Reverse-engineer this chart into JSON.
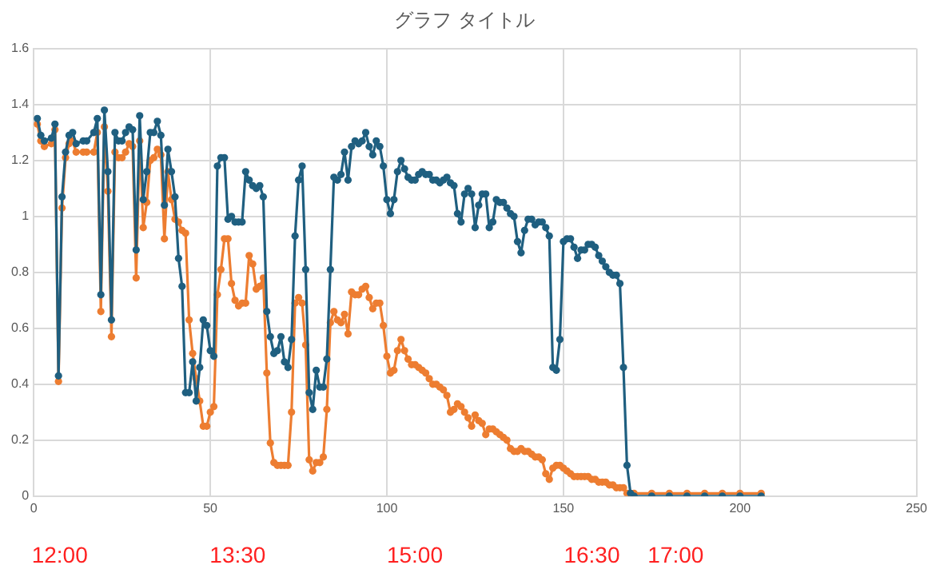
{
  "chart_data": {
    "type": "line",
    "title": "グラフ タイトル",
    "marker": "circle",
    "grid": true,
    "legend": false,
    "x": [
      1,
      2,
      3,
      5,
      6,
      7,
      8,
      9,
      10,
      11,
      12,
      14,
      15,
      17,
      18,
      19,
      20,
      21,
      22,
      23,
      24,
      25,
      26,
      27,
      28,
      29,
      30,
      31,
      32,
      33,
      34,
      35,
      36,
      37,
      38,
      39,
      40,
      41,
      42,
      43,
      44,
      45,
      46,
      47,
      48,
      49,
      50,
      51,
      52,
      53,
      54,
      55,
      56,
      57,
      58,
      59,
      60,
      61,
      62,
      63,
      64,
      65,
      66,
      67,
      68,
      69,
      70,
      71,
      72,
      73,
      74,
      75,
      76,
      77,
      78,
      79,
      80,
      81,
      82,
      83,
      84,
      85,
      86,
      87,
      88,
      89,
      90,
      91,
      92,
      93,
      94,
      95,
      96,
      97,
      98,
      99,
      100,
      101,
      102,
      103,
      104,
      105,
      106,
      107,
      108,
      109,
      110,
      111,
      112,
      113,
      114,
      115,
      116,
      117,
      118,
      119,
      120,
      121,
      122,
      123,
      124,
      125,
      126,
      127,
      128,
      129,
      130,
      131,
      132,
      133,
      134,
      135,
      136,
      137,
      138,
      139,
      140,
      141,
      142,
      143,
      144,
      145,
      146,
      147,
      148,
      149,
      150,
      151,
      152,
      153,
      154,
      155,
      156,
      157,
      158,
      159,
      160,
      161,
      162,
      163,
      164,
      165,
      166,
      167,
      168,
      169,
      170,
      175,
      180,
      185,
      190,
      195,
      200,
      206
    ],
    "series": [
      {
        "color": "#1f5f80",
        "values": [
          1.35,
          1.29,
          1.27,
          1.28,
          1.33,
          0.43,
          1.07,
          1.23,
          1.29,
          1.3,
          1.26,
          1.27,
          1.27,
          1.3,
          1.35,
          0.72,
          1.38,
          1.16,
          0.63,
          1.3,
          1.27,
          1.27,
          1.3,
          1.32,
          1.31,
          0.88,
          1.36,
          1.06,
          1.16,
          1.3,
          1.3,
          1.34,
          1.29,
          1.04,
          1.24,
          1.16,
          1.07,
          0.85,
          0.75,
          0.37,
          0.37,
          0.48,
          0.34,
          0.46,
          0.63,
          0.61,
          0.52,
          0.5,
          1.18,
          1.21,
          1.21,
          0.99,
          1.0,
          0.98,
          0.98,
          0.98,
          1.16,
          1.13,
          1.11,
          1.1,
          1.11,
          1.07,
          0.66,
          0.57,
          0.51,
          0.52,
          0.57,
          0.48,
          0.46,
          0.56,
          0.93,
          1.13,
          1.18,
          0.81,
          0.37,
          0.31,
          0.45,
          0.39,
          0.39,
          0.49,
          0.81,
          1.14,
          1.13,
          1.15,
          1.23,
          1.13,
          1.25,
          1.27,
          1.26,
          1.27,
          1.3,
          1.25,
          1.22,
          1.27,
          1.25,
          1.18,
          1.06,
          1.01,
          1.06,
          1.16,
          1.2,
          1.17,
          1.14,
          1.13,
          1.13,
          1.15,
          1.16,
          1.15,
          1.15,
          1.13,
          1.13,
          1.12,
          1.13,
          1.14,
          1.12,
          1.11,
          1.01,
          0.98,
          1.08,
          1.1,
          1.08,
          0.96,
          1.04,
          1.08,
          1.08,
          0.96,
          0.98,
          1.06,
          1.05,
          1.05,
          1.03,
          1.01,
          1.0,
          0.91,
          0.87,
          0.95,
          0.99,
          0.99,
          0.97,
          0.98,
          0.98,
          0.96,
          0.93,
          0.46,
          0.45,
          0.56,
          0.91,
          0.92,
          0.92,
          0.89,
          0.85,
          0.88,
          0.88,
          0.9,
          0.9,
          0.89,
          0.86,
          0.84,
          0.82,
          0.8,
          0.79,
          0.79,
          0.76,
          0.46,
          0.11,
          0.01,
          0,
          0,
          0,
          0,
          0,
          0,
          0,
          0
        ]
      },
      {
        "color": "#ed7d31",
        "values": [
          1.33,
          1.27,
          1.25,
          1.26,
          1.31,
          0.41,
          1.03,
          1.21,
          1.26,
          1.27,
          1.23,
          1.23,
          1.23,
          1.23,
          1.3,
          0.66,
          1.32,
          1.09,
          0.57,
          1.23,
          1.21,
          1.21,
          1.23,
          1.26,
          1.25,
          0.78,
          1.27,
          0.96,
          1.05,
          1.2,
          1.21,
          1.24,
          1.22,
          0.92,
          1.16,
          1.06,
          0.99,
          0.98,
          0.95,
          0.94,
          0.63,
          0.51,
          0.42,
          0.34,
          0.25,
          0.25,
          0.3,
          0.32,
          0.72,
          0.81,
          0.92,
          0.92,
          0.76,
          0.7,
          0.68,
          0.69,
          0.69,
          0.86,
          0.83,
          0.74,
          0.75,
          0.78,
          0.44,
          0.19,
          0.12,
          0.11,
          0.11,
          0.11,
          0.11,
          0.3,
          0.69,
          0.71,
          0.69,
          0.54,
          0.13,
          0.09,
          0.12,
          0.12,
          0.14,
          0.31,
          0.62,
          0.66,
          0.63,
          0.62,
          0.65,
          0.58,
          0.73,
          0.72,
          0.72,
          0.74,
          0.75,
          0.71,
          0.67,
          0.69,
          0.69,
          0.61,
          0.5,
          0.44,
          0.45,
          0.52,
          0.56,
          0.52,
          0.49,
          0.47,
          0.47,
          0.46,
          0.45,
          0.44,
          0.42,
          0.4,
          0.4,
          0.39,
          0.38,
          0.36,
          0.3,
          0.31,
          0.33,
          0.32,
          0.3,
          0.28,
          0.25,
          0.29,
          0.27,
          0.26,
          0.22,
          0.24,
          0.24,
          0.23,
          0.22,
          0.21,
          0.2,
          0.17,
          0.16,
          0.16,
          0.17,
          0.16,
          0.16,
          0.15,
          0.14,
          0.14,
          0.13,
          0.08,
          0.06,
          0.1,
          0.11,
          0.11,
          0.1,
          0.09,
          0.08,
          0.07,
          0.07,
          0.07,
          0.07,
          0.07,
          0.06,
          0.06,
          0.05,
          0.05,
          0.05,
          0.04,
          0.04,
          0.03,
          0.03,
          0.03,
          0.01,
          0.01,
          0.01,
          0.01,
          0.01,
          0.01,
          0.01,
          0.01,
          0.01,
          0.01
        ]
      }
    ],
    "xlim": [
      0,
      250
    ],
    "xticks": [
      0,
      50,
      100,
      150,
      200,
      250
    ],
    "ylim": [
      0,
      1.6
    ],
    "yticks": [
      0,
      0.2,
      0.4,
      0.6,
      0.8,
      1,
      1.2,
      1.4,
      1.6
    ],
    "annotations": [
      "12:00",
      "13:30",
      "15:00",
      "16:30",
      "17:00"
    ]
  }
}
